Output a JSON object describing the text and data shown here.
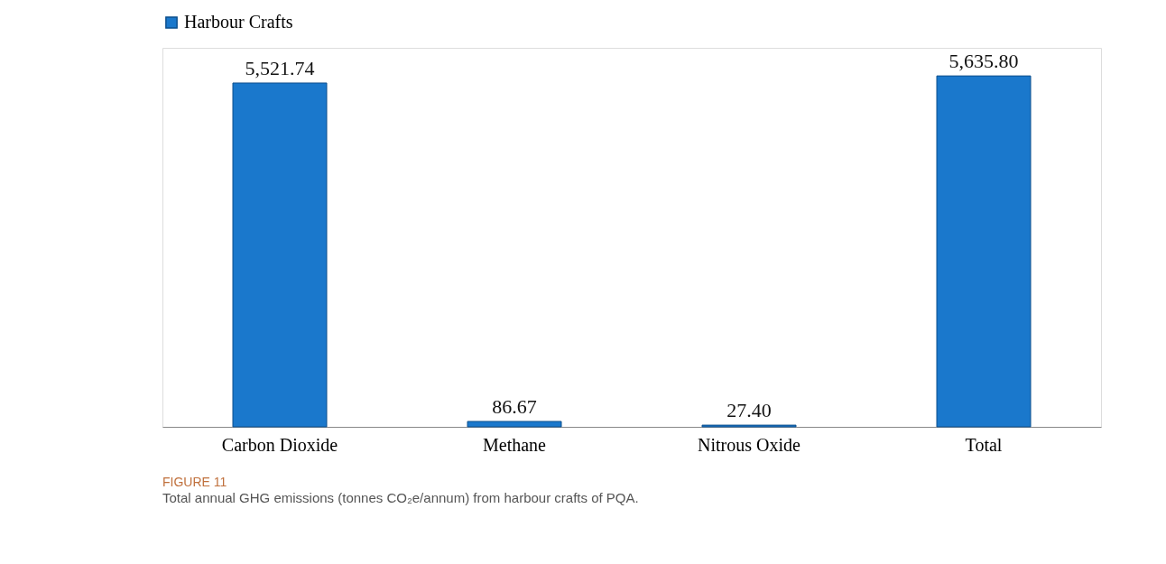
{
  "chart_data": {
    "type": "bar",
    "categories": [
      "Carbon Dioxide",
      "Methane",
      "Nitrous Oxide",
      "Total"
    ],
    "series": [
      {
        "name": "Harbour Crafts",
        "color": "#1a78cc",
        "values": [
          5521.74,
          86.67,
          27.4,
          5635.8
        ],
        "value_labels": [
          "5,521.74",
          "86.67",
          "27.40",
          "5,635.80"
        ]
      }
    ],
    "legend": "top",
    "grid": false,
    "annotations": [
      "FIGURE 11",
      "Total annual GHG emissions (tonnes CO₂e/annum) from harbour crafts of PQA."
    ]
  }
}
